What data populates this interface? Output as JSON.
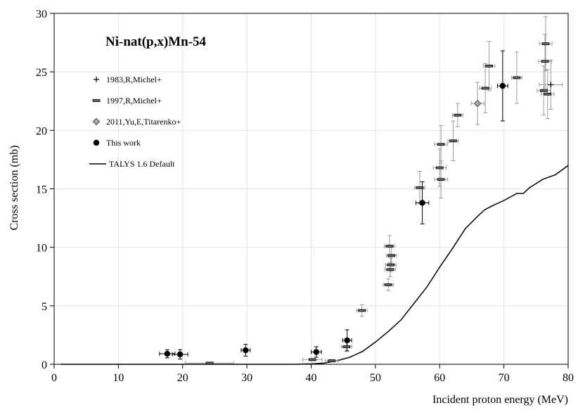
{
  "chart_data": {
    "type": "scatter",
    "title": "Ni-nat(p,x)Mn-54",
    "xlabel": "Incident proton energy (MeV)",
    "ylabel": "Cross section (mb)",
    "xlim": [
      0,
      80
    ],
    "ylim": [
      0,
      30
    ],
    "xticks": [
      0,
      10,
      20,
      30,
      40,
      50,
      60,
      70,
      80
    ],
    "yticks": [
      0,
      5,
      10,
      15,
      20,
      25,
      30
    ],
    "grid": true,
    "legend_position": "top-left",
    "series": [
      {
        "name": "1983,R,Michel+",
        "marker": "plus",
        "points": [
          {
            "x": 77.3,
            "y": 23.9,
            "xerr": 1.8,
            "yerr": 2.1
          }
        ]
      },
      {
        "name": "1997,R,Michel+",
        "marker": "dash",
        "points": [
          {
            "x": 24.2,
            "y": 0.1,
            "xerr": 3.8,
            "yerr": 0.05
          },
          {
            "x": 40.2,
            "y": 0.4,
            "xerr": 1.5,
            "yerr": 0.1
          },
          {
            "x": 43.2,
            "y": 0.3,
            "xerr": 1.0,
            "yerr": 0.1
          },
          {
            "x": 45.5,
            "y": 1.5,
            "xerr": 0.8,
            "yerr": 0.4
          },
          {
            "x": 47.9,
            "y": 4.6,
            "xerr": 0.8,
            "yerr": 0.5
          },
          {
            "x": 52.0,
            "y": 6.8,
            "xerr": 0.8,
            "yerr": 0.5
          },
          {
            "x": 52.3,
            "y": 8.1,
            "xerr": 0.8,
            "yerr": 0.6
          },
          {
            "x": 52.4,
            "y": 8.5,
            "xerr": 0.8,
            "yerr": 0.6
          },
          {
            "x": 52.5,
            "y": 9.3,
            "xerr": 0.8,
            "yerr": 0.7
          },
          {
            "x": 52.2,
            "y": 10.1,
            "xerr": 0.8,
            "yerr": 0.9
          },
          {
            "x": 56.9,
            "y": 15.1,
            "xerr": 0.8,
            "yerr": 1.4
          },
          {
            "x": 60.2,
            "y": 15.8,
            "xerr": 1.0,
            "yerr": 1.6
          },
          {
            "x": 60.0,
            "y": 16.8,
            "xerr": 1.0,
            "yerr": 1.6
          },
          {
            "x": 60.2,
            "y": 18.8,
            "xerr": 1.0,
            "yerr": 1.6
          },
          {
            "x": 62.1,
            "y": 19.1,
            "xerr": 0.8,
            "yerr": 1.7
          },
          {
            "x": 62.8,
            "y": 21.3,
            "xerr": 0.8,
            "yerr": 1.0
          },
          {
            "x": 67.1,
            "y": 23.6,
            "xerr": 0.9,
            "yerr": 2.1
          },
          {
            "x": 67.7,
            "y": 25.5,
            "xerr": 0.9,
            "yerr": 2.1
          },
          {
            "x": 72.0,
            "y": 24.5,
            "xerr": 0.8,
            "yerr": 2.2
          },
          {
            "x": 76.2,
            "y": 23.4,
            "xerr": 1.0,
            "yerr": 2.1
          },
          {
            "x": 76.4,
            "y": 25.9,
            "xerr": 1.0,
            "yerr": 2.3
          },
          {
            "x": 76.5,
            "y": 27.4,
            "xerr": 1.0,
            "yerr": 2.3
          },
          {
            "x": 76.8,
            "y": 23.1,
            "xerr": 1.0,
            "yerr": 2.1
          }
        ]
      },
      {
        "name": "2011,Yu,E,Titarenko+",
        "marker": "diamond",
        "points": [
          {
            "x": 65.9,
            "y": 22.3,
            "xerr": 1.0,
            "yerr": 1.8
          }
        ]
      },
      {
        "name": "This work",
        "marker": "circle",
        "points": [
          {
            "x": 17.6,
            "y": 0.9,
            "xerr": 1.2,
            "yerr": 0.35
          },
          {
            "x": 19.6,
            "y": 0.85,
            "xerr": 1.2,
            "yerr": 0.4
          },
          {
            "x": 29.8,
            "y": 1.2,
            "xerr": 0.7,
            "yerr": 0.5
          },
          {
            "x": 40.8,
            "y": 1.05,
            "xerr": 0.8,
            "yerr": 0.45
          },
          {
            "x": 45.6,
            "y": 2.05,
            "xerr": 0.7,
            "yerr": 0.9
          },
          {
            "x": 57.3,
            "y": 13.8,
            "xerr": 1.0,
            "yerr": 1.8
          },
          {
            "x": 69.8,
            "y": 23.8,
            "xerr": 0.8,
            "yerr": 3.0
          }
        ]
      },
      {
        "name": "TALYS 1.6 Default",
        "marker": "line",
        "points": [
          {
            "x": 1,
            "y": 0
          },
          {
            "x": 36,
            "y": 0
          },
          {
            "x": 38,
            "y": 0.01
          },
          {
            "x": 40,
            "y": 0.04
          },
          {
            "x": 42,
            "y": 0.1
          },
          {
            "x": 44,
            "y": 0.3
          },
          {
            "x": 46,
            "y": 0.6
          },
          {
            "x": 48,
            "y": 1.1
          },
          {
            "x": 50,
            "y": 1.9
          },
          {
            "x": 52,
            "y": 2.8
          },
          {
            "x": 54,
            "y": 3.8
          },
          {
            "x": 56,
            "y": 5.2
          },
          {
            "x": 58,
            "y": 6.6
          },
          {
            "x": 60,
            "y": 8.3
          },
          {
            "x": 62,
            "y": 9.9
          },
          {
            "x": 64,
            "y": 11.6
          },
          {
            "x": 66,
            "y": 12.7
          },
          {
            "x": 67,
            "y": 13.2
          },
          {
            "x": 68,
            "y": 13.5
          },
          {
            "x": 70,
            "y": 14.0
          },
          {
            "x": 72,
            "y": 14.6
          },
          {
            "x": 73,
            "y": 14.6
          },
          {
            "x": 74,
            "y": 15.1
          },
          {
            "x": 76,
            "y": 15.8
          },
          {
            "x": 78,
            "y": 16.2
          },
          {
            "x": 80,
            "y": 17.0
          }
        ]
      }
    ]
  }
}
